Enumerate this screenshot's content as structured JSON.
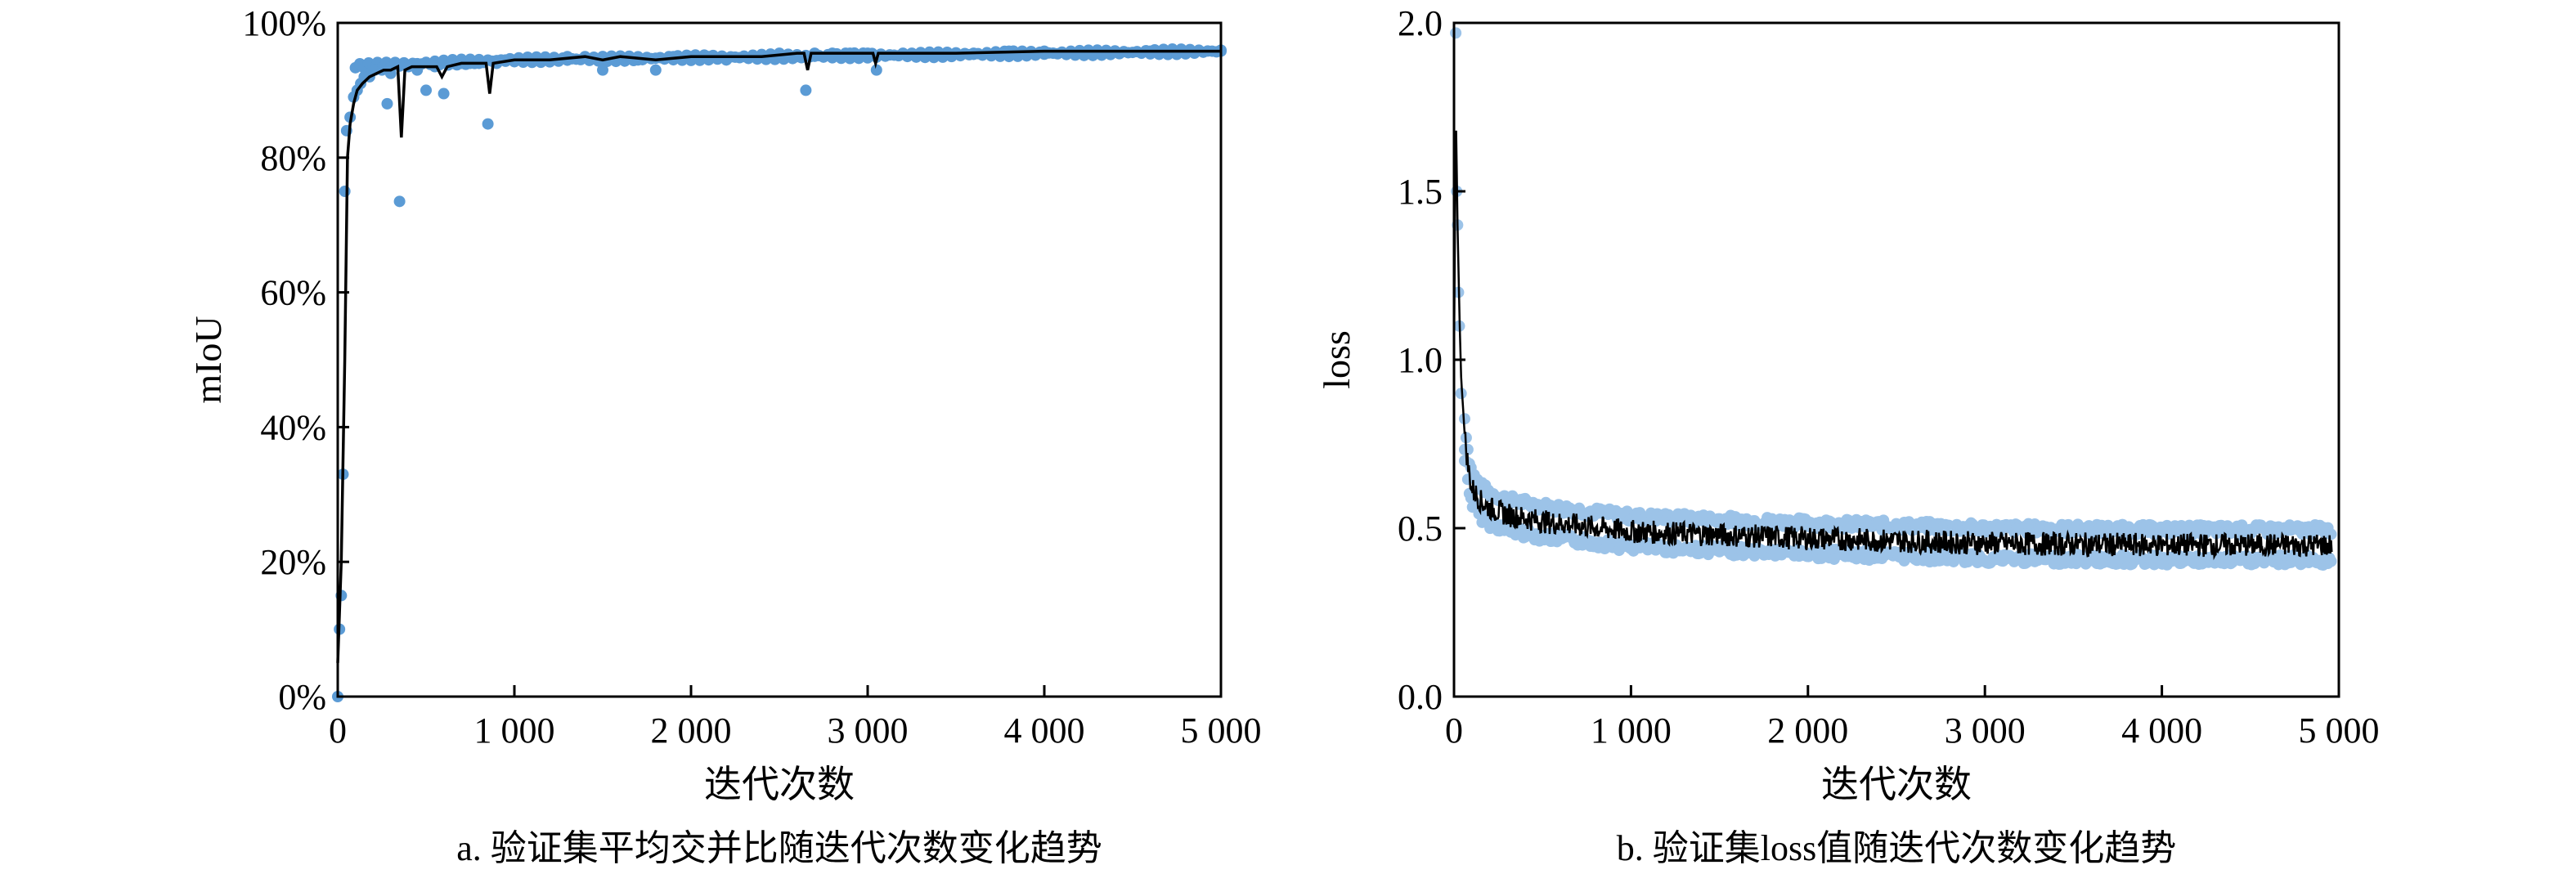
{
  "colors": {
    "dots": "#5b9bd5",
    "dots_light": "#9cc3e8",
    "line": "#000000",
    "axes": "#000000"
  },
  "chart_data": [
    {
      "id": "a",
      "type": "scatter",
      "caption": "a. 验证集平均交并比随迭代次数变化趋势",
      "xlabel": "迭代次数",
      "ylabel": "mIoU",
      "xlim": [
        0,
        5000
      ],
      "ylim": [
        0,
        1.0
      ],
      "x_ticks": [
        0,
        1000,
        2000,
        3000,
        4000,
        5000
      ],
      "x_tick_labels": [
        "0",
        "1 000",
        "2 000",
        "3 000",
        "4 000",
        "5 000"
      ],
      "y_ticks": [
        0,
        0.2,
        0.4,
        0.6,
        0.8,
        1.0
      ],
      "y_tick_labels": [
        "0%",
        "20%",
        "40%",
        "60%",
        "80%",
        "100%"
      ],
      "grid": false,
      "series": [
        {
          "kind": "points",
          "points": [
            [
              0,
              0.0
            ],
            [
              10,
              0.1
            ],
            [
              20,
              0.15
            ],
            [
              30,
              0.33
            ],
            [
              40,
              0.75
            ],
            [
              50,
              0.84
            ],
            [
              70,
              0.86
            ],
            [
              90,
              0.89
            ],
            [
              110,
              0.9
            ],
            [
              130,
              0.91
            ],
            [
              150,
              0.92
            ],
            [
              180,
              0.92
            ],
            [
              210,
              0.93
            ],
            [
              250,
              0.93
            ],
            [
              280,
              0.88
            ],
            [
              300,
              0.925
            ],
            [
              350,
              0.735
            ],
            [
              400,
              0.935
            ],
            [
              450,
              0.93
            ],
            [
              500,
              0.9
            ],
            [
              550,
              0.935
            ],
            [
              600,
              0.895
            ],
            [
              650,
              0.94
            ],
            [
              700,
              0.94
            ],
            [
              750,
              0.94
            ],
            [
              800,
              0.94
            ],
            [
              850,
              0.85
            ],
            [
              900,
              0.94
            ],
            [
              950,
              0.945
            ],
            [
              1000,
              0.945
            ],
            [
              1100,
              0.945
            ],
            [
              1200,
              0.945
            ],
            [
              1300,
              0.95
            ],
            [
              1400,
              0.95
            ],
            [
              1500,
              0.93
            ],
            [
              1600,
              0.95
            ],
            [
              1700,
              0.945
            ],
            [
              1800,
              0.93
            ],
            [
              1900,
              0.95
            ],
            [
              2000,
              0.95
            ],
            [
              2100,
              0.95
            ],
            [
              2200,
              0.945
            ],
            [
              2300,
              0.95
            ],
            [
              2400,
              0.95
            ],
            [
              2500,
              0.955
            ],
            [
              2600,
              0.95
            ],
            [
              2650,
              0.9
            ],
            [
              2700,
              0.955
            ],
            [
              2800,
              0.955
            ],
            [
              2900,
              0.955
            ],
            [
              3000,
              0.955
            ],
            [
              3050,
              0.93
            ],
            [
              3200,
              0.955
            ],
            [
              3400,
              0.955
            ],
            [
              3600,
              0.955
            ],
            [
              3800,
              0.958
            ],
            [
              4000,
              0.958
            ],
            [
              4200,
              0.958
            ],
            [
              4400,
              0.958
            ],
            [
              4600,
              0.958
            ],
            [
              4800,
              0.958
            ],
            [
              5000,
              0.958
            ]
          ]
        },
        {
          "kind": "line",
          "points": [
            [
              0,
              0.05
            ],
            [
              20,
              0.2
            ],
            [
              40,
              0.5
            ],
            [
              55,
              0.8
            ],
            [
              70,
              0.85
            ],
            [
              90,
              0.88
            ],
            [
              110,
              0.9
            ],
            [
              140,
              0.91
            ],
            [
              180,
              0.92
            ],
            [
              220,
              0.925
            ],
            [
              260,
              0.93
            ],
            [
              300,
              0.93
            ],
            [
              340,
              0.935
            ],
            [
              360,
              0.83
            ],
            [
              380,
              0.93
            ],
            [
              420,
              0.935
            ],
            [
              500,
              0.935
            ],
            [
              560,
              0.935
            ],
            [
              590,
              0.92
            ],
            [
              620,
              0.935
            ],
            [
              700,
              0.94
            ],
            [
              800,
              0.94
            ],
            [
              840,
              0.94
            ],
            [
              860,
              0.895
            ],
            [
              880,
              0.94
            ],
            [
              1000,
              0.945
            ],
            [
              1200,
              0.945
            ],
            [
              1400,
              0.95
            ],
            [
              1500,
              0.945
            ],
            [
              1600,
              0.95
            ],
            [
              1800,
              0.945
            ],
            [
              2000,
              0.95
            ],
            [
              2200,
              0.95
            ],
            [
              2400,
              0.95
            ],
            [
              2600,
              0.955
            ],
            [
              2640,
              0.955
            ],
            [
              2660,
              0.93
            ],
            [
              2680,
              0.955
            ],
            [
              3000,
              0.955
            ],
            [
              3030,
              0.955
            ],
            [
              3045,
              0.94
            ],
            [
              3060,
              0.955
            ],
            [
              3500,
              0.955
            ],
            [
              4000,
              0.958
            ],
            [
              4500,
              0.958
            ],
            [
              5000,
              0.958
            ]
          ]
        }
      ]
    },
    {
      "id": "b",
      "type": "scatter",
      "caption": "b. 验证集loss值随迭代次数变化趋势",
      "xlabel": "迭代次数",
      "ylabel": "loss",
      "xlim": [
        0,
        5000
      ],
      "ylim": [
        0,
        2.0
      ],
      "x_ticks": [
        0,
        1000,
        2000,
        3000,
        4000,
        5000
      ],
      "x_tick_labels": [
        "0",
        "1 000",
        "2 000",
        "3 000",
        "4 000",
        "5 000"
      ],
      "y_ticks": [
        0,
        0.5,
        1.0,
        1.5,
        2.0
      ],
      "y_tick_labels": [
        "0.0",
        "0.5",
        "1.0",
        "1.5",
        "2.0"
      ],
      "grid": false,
      "series": [
        {
          "kind": "band_points",
          "x_range": [
            0,
            4960
          ],
          "lower_offset": -0.05,
          "upper_offset": 0.05,
          "head_points": [
            [
              10,
              1.97
            ],
            [
              15,
              1.5
            ],
            [
              20,
              1.4
            ],
            [
              25,
              1.2
            ],
            [
              30,
              1.1
            ],
            [
              40,
              0.9
            ],
            [
              60,
              0.7
            ],
            [
              100,
              0.6
            ]
          ]
        },
        {
          "kind": "line",
          "curve": [
            [
              0,
              1.0
            ],
            [
              10,
              1.75
            ],
            [
              20,
              1.4
            ],
            [
              30,
              1.15
            ],
            [
              40,
              0.95
            ],
            [
              60,
              0.78
            ],
            [
              80,
              0.68
            ],
            [
              100,
              0.62
            ],
            [
              150,
              0.58
            ],
            [
              200,
              0.56
            ],
            [
              300,
              0.54
            ],
            [
              500,
              0.52
            ],
            [
              1000,
              0.49
            ],
            [
              1500,
              0.48
            ],
            [
              2000,
              0.47
            ],
            [
              3000,
              0.455
            ],
            [
              4000,
              0.45
            ],
            [
              4960,
              0.45
            ]
          ],
          "noise": 0.035
        }
      ]
    }
  ]
}
